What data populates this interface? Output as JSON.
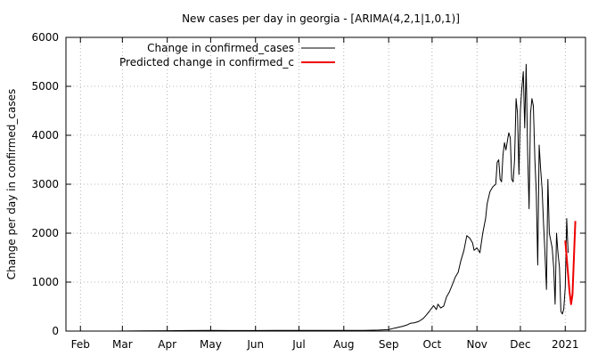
{
  "chart_data": {
    "type": "line",
    "title": "New cases per day in georgia -  [ARIMA(4,2,1|1,0,1)]",
    "ylabel": "Change per day in confirmed_cases",
    "xlabel": "",
    "ylim": [
      0,
      6000
    ],
    "yticks": [
      0,
      1000,
      2000,
      3000,
      4000,
      5000,
      6000
    ],
    "x_axis": {
      "start": "2020-01-22",
      "end": "2021-01-15",
      "ticks": [
        {
          "label": "Feb",
          "date": "2020-02-01"
        },
        {
          "label": "Mar",
          "date": "2020-03-01"
        },
        {
          "label": "Apr",
          "date": "2020-04-01"
        },
        {
          "label": "May",
          "date": "2020-05-01"
        },
        {
          "label": "Jun",
          "date": "2020-06-01"
        },
        {
          "label": "Jul",
          "date": "2020-07-01"
        },
        {
          "label": "Aug",
          "date": "2020-08-01"
        },
        {
          "label": "Sep",
          "date": "2020-09-01"
        },
        {
          "label": "Oct",
          "date": "2020-10-01"
        },
        {
          "label": "Nov",
          "date": "2020-11-01"
        },
        {
          "label": "Dec",
          "date": "2020-12-01"
        },
        {
          "label": "2021",
          "date": "2021-01-01"
        }
      ]
    },
    "grid": true,
    "legend_position": "top-left",
    "series": [
      {
        "name": "Change in confirmed_cases",
        "color": "#000000",
        "points": [
          [
            "2020-01-22",
            0
          ],
          [
            "2020-02-26",
            0
          ],
          [
            "2020-03-15",
            3
          ],
          [
            "2020-04-01",
            8
          ],
          [
            "2020-04-15",
            10
          ],
          [
            "2020-05-01",
            12
          ],
          [
            "2020-05-15",
            10
          ],
          [
            "2020-06-01",
            10
          ],
          [
            "2020-06-15",
            12
          ],
          [
            "2020-07-01",
            14
          ],
          [
            "2020-07-15",
            15
          ],
          [
            "2020-08-01",
            15
          ],
          [
            "2020-08-15",
            15
          ],
          [
            "2020-08-25",
            20
          ],
          [
            "2020-09-01",
            30
          ],
          [
            "2020-09-05",
            60
          ],
          [
            "2020-09-08",
            80
          ],
          [
            "2020-09-11",
            100
          ],
          [
            "2020-09-14",
            130
          ],
          [
            "2020-09-16",
            160
          ],
          [
            "2020-09-19",
            170
          ],
          [
            "2020-09-22",
            200
          ],
          [
            "2020-09-25",
            260
          ],
          [
            "2020-09-27",
            330
          ],
          [
            "2020-09-29",
            400
          ],
          [
            "2020-10-02",
            520
          ],
          [
            "2020-10-04",
            440
          ],
          [
            "2020-10-05",
            550
          ],
          [
            "2020-10-07",
            470
          ],
          [
            "2020-10-09",
            510
          ],
          [
            "2020-10-11",
            700
          ],
          [
            "2020-10-13",
            800
          ],
          [
            "2020-10-15",
            950
          ],
          [
            "2020-10-17",
            1100
          ],
          [
            "2020-10-19",
            1200
          ],
          [
            "2020-10-21",
            1450
          ],
          [
            "2020-10-23",
            1650
          ],
          [
            "2020-10-25",
            1950
          ],
          [
            "2020-10-27",
            1900
          ],
          [
            "2020-10-28",
            1850
          ],
          [
            "2020-10-29",
            1800
          ],
          [
            "2020-10-30",
            1650
          ],
          [
            "2020-11-01",
            1700
          ],
          [
            "2020-11-03",
            1600
          ],
          [
            "2020-11-05",
            2000
          ],
          [
            "2020-11-07",
            2300
          ],
          [
            "2020-11-08",
            2600
          ],
          [
            "2020-11-10",
            2850
          ],
          [
            "2020-11-12",
            2950
          ],
          [
            "2020-11-14",
            3000
          ],
          [
            "2020-11-15",
            3450
          ],
          [
            "2020-11-16",
            3500
          ],
          [
            "2020-11-17",
            3100
          ],
          [
            "2020-11-18",
            3050
          ],
          [
            "2020-11-19",
            3600
          ],
          [
            "2020-11-20",
            3850
          ],
          [
            "2020-11-21",
            3700
          ],
          [
            "2020-11-23",
            4050
          ],
          [
            "2020-11-24",
            3950
          ],
          [
            "2020-11-25",
            3100
          ],
          [
            "2020-11-26",
            3050
          ],
          [
            "2020-11-27",
            3500
          ],
          [
            "2020-11-28",
            4750
          ],
          [
            "2020-11-29",
            4450
          ],
          [
            "2020-11-30",
            3200
          ],
          [
            "2020-12-01",
            4500
          ],
          [
            "2020-12-02",
            4950
          ],
          [
            "2020-12-03",
            5300
          ],
          [
            "2020-12-04",
            4150
          ],
          [
            "2020-12-05",
            5450
          ],
          [
            "2020-12-06",
            3700
          ],
          [
            "2020-12-07",
            2500
          ],
          [
            "2020-12-08",
            4450
          ],
          [
            "2020-12-09",
            4750
          ],
          [
            "2020-12-10",
            4600
          ],
          [
            "2020-12-11",
            3500
          ],
          [
            "2020-12-12",
            2800
          ],
          [
            "2020-12-13",
            1350
          ],
          [
            "2020-12-14",
            3800
          ],
          [
            "2020-12-15",
            3300
          ],
          [
            "2020-12-16",
            2900
          ],
          [
            "2020-12-17",
            2200
          ],
          [
            "2020-12-18",
            1600
          ],
          [
            "2020-12-19",
            850
          ],
          [
            "2020-12-20",
            3100
          ],
          [
            "2020-12-21",
            2000
          ],
          [
            "2020-12-22",
            1850
          ],
          [
            "2020-12-23",
            1700
          ],
          [
            "2020-12-24",
            1300
          ],
          [
            "2020-12-25",
            550
          ],
          [
            "2020-12-26",
            2000
          ],
          [
            "2020-12-27",
            1600
          ],
          [
            "2020-12-28",
            1300
          ],
          [
            "2020-12-29",
            400
          ],
          [
            "2020-12-30",
            350
          ],
          [
            "2020-12-31",
            450
          ],
          [
            "2021-01-01",
            900
          ],
          [
            "2021-01-02",
            2300
          ],
          [
            "2021-01-03",
            1600
          ]
        ]
      },
      {
        "name": "Predicted change in confirmed_c",
        "color": "#ee0000",
        "points": [
          [
            "2021-01-01",
            1850
          ],
          [
            "2021-01-02",
            1500
          ],
          [
            "2021-01-03",
            1150
          ],
          [
            "2021-01-04",
            800
          ],
          [
            "2021-01-05",
            550
          ],
          [
            "2021-01-06",
            750
          ],
          [
            "2021-01-07",
            1500
          ],
          [
            "2021-01-08",
            2250
          ]
        ]
      }
    ]
  }
}
